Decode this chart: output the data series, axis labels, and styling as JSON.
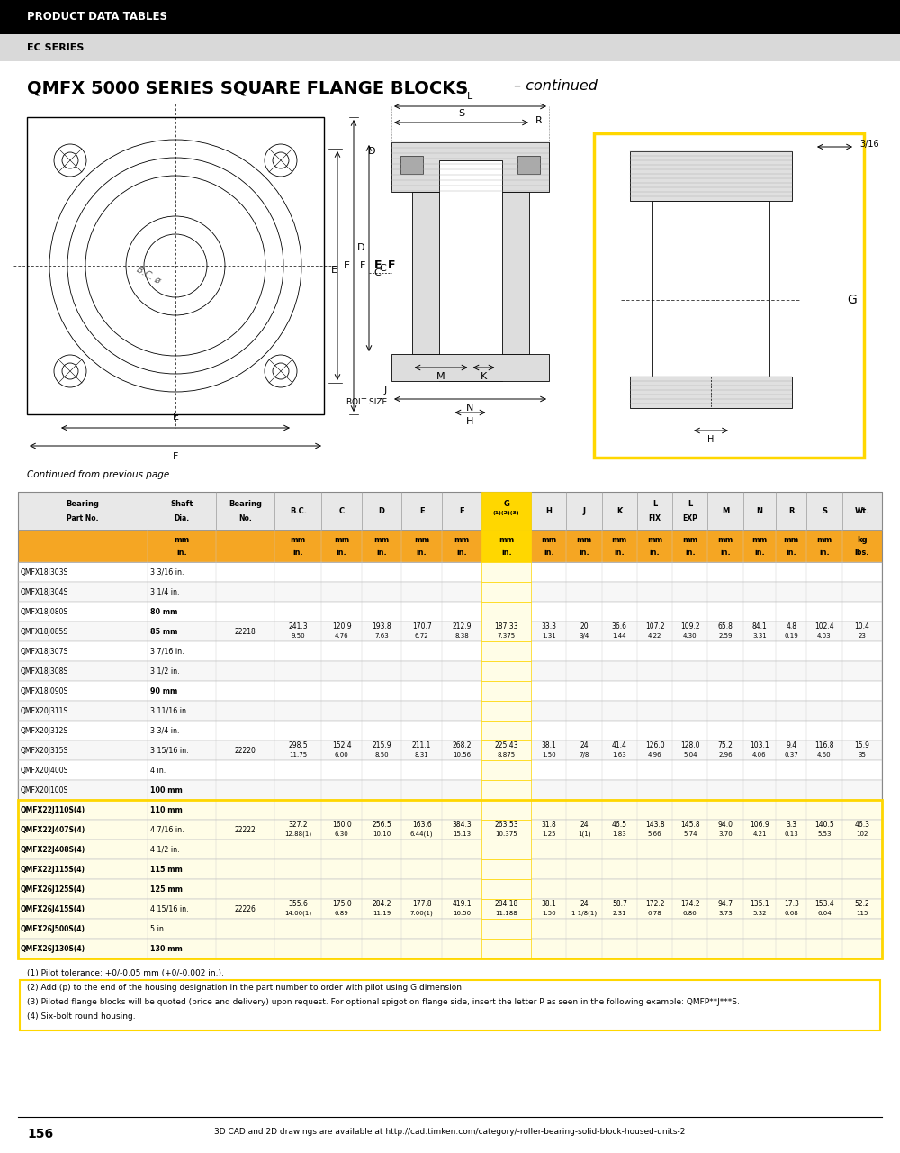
{
  "header_bar_color": "#000000",
  "header_text": "PRODUCT DATA TABLES",
  "subheader_bar_color": "#d9d9d9",
  "subheader_text": "EC SERIES",
  "title_bold": "QMFX 5000 SERIES SQUARE FLANGE BLOCKS",
  "title_italic": " – continued",
  "continued_text": "Continued from previous page.",
  "orange_color": "#F5A623",
  "highlight_yellow": "#FFD700",
  "col_header_texts": [
    "Bearing\nPart No.",
    "Shaft\nDia.",
    "Bearing\nNo.",
    "B.C.",
    "C",
    "D",
    "E",
    "F",
    "G(1)(2)(3)",
    "H",
    "J",
    "K",
    "L\nFIX",
    "L\nEXP",
    "M",
    "N",
    "R",
    "S",
    "Wt."
  ],
  "unit_row1": [
    "",
    "mm",
    "",
    "mm",
    "mm",
    "mm",
    "mm",
    "mm",
    "mm",
    "mm",
    "mm",
    "mm",
    "mm",
    "mm",
    "mm",
    "mm",
    "mm",
    "mm",
    "kg"
  ],
  "unit_row2": [
    "",
    "in.",
    "",
    "in.",
    "in.",
    "in.",
    "in.",
    "in.",
    "in.",
    "in.",
    "in.",
    "in.",
    "in.",
    "in.",
    "in.",
    "in.",
    "in.",
    "in.",
    "lbs."
  ],
  "table_rows": [
    [
      "QMFX18J303S",
      "3 3/16 in.",
      "",
      "",
      "",
      "",
      "",
      "",
      "",
      "",
      "",
      "",
      "",
      "",
      "",
      "",
      "",
      "",
      ""
    ],
    [
      "QMFX18J304S",
      "3 1/4 in.",
      "",
      "",
      "",
      "",
      "",
      "",
      "",
      "",
      "",
      "",
      "",
      "",
      "",
      "",
      "",
      "",
      ""
    ],
    [
      "QMFX18J080S",
      "80 mm",
      "",
      "",
      "",
      "",
      "",
      "",
      "",
      "",
      "",
      "",
      "",
      "",
      "",
      "",
      "",
      "",
      ""
    ],
    [
      "QMFX18J085S",
      "85 mm",
      "22218",
      "241.3\n9.50",
      "120.9\n4.76",
      "193.8\n7.63",
      "170.7\n6.72",
      "212.9\n8.38",
      "187.33\n7.375",
      "33.3\n1.31",
      "20\n3/4",
      "36.6\n1.44",
      "107.2\n4.22",
      "109.2\n4.30",
      "65.8\n2.59",
      "84.1\n3.31",
      "4.8\n0.19",
      "102.4\n4.03",
      "10.4\n23"
    ],
    [
      "QMFX18J307S",
      "3 7/16 in.",
      "",
      "",
      "",
      "",
      "",
      "",
      "",
      "",
      "",
      "",
      "",
      "",
      "",
      "",
      "",
      "",
      ""
    ],
    [
      "QMFX18J308S",
      "3 1/2 in.",
      "",
      "",
      "",
      "",
      "",
      "",
      "",
      "",
      "",
      "",
      "",
      "",
      "",
      "",
      "",
      "",
      ""
    ],
    [
      "QMFX18J090S",
      "90 mm",
      "",
      "",
      "",
      "",
      "",
      "",
      "",
      "",
      "",
      "",
      "",
      "",
      "",
      "",
      "",
      "",
      ""
    ],
    [
      "QMFX20J311S",
      "3 11/16 in.",
      "",
      "",
      "",
      "",
      "",
      "",
      "",
      "",
      "",
      "",
      "",
      "",
      "",
      "",
      "",
      "",
      ""
    ],
    [
      "QMFX20J312S",
      "3 3/4 in.",
      "",
      "",
      "",
      "",
      "",
      "",
      "",
      "",
      "",
      "",
      "",
      "",
      "",
      "",
      "",
      "",
      ""
    ],
    [
      "QMFX20J315S",
      "3 15/16 in.",
      "22220",
      "298.5\n11.75",
      "152.4\n6.00",
      "215.9\n8.50",
      "211.1\n8.31",
      "268.2\n10.56",
      "225.43\n8.875",
      "38.1\n1.50",
      "24\n7/8",
      "41.4\n1.63",
      "126.0\n4.96",
      "128.0\n5.04",
      "75.2\n2.96",
      "103.1\n4.06",
      "9.4\n0.37",
      "116.8\n4.60",
      "15.9\n35"
    ],
    [
      "QMFX20J400S",
      "4 in.",
      "",
      "",
      "",
      "",
      "",
      "",
      "",
      "",
      "",
      "",
      "",
      "",
      "",
      "",
      "",
      "",
      ""
    ],
    [
      "QMFX20J100S",
      "100 mm",
      "",
      "",
      "",
      "",
      "",
      "",
      "",
      "",
      "",
      "",
      "",
      "",
      "",
      "",
      "",
      "",
      ""
    ],
    [
      "QMFX22J110S(4)",
      "110 mm",
      "",
      "",
      "",
      "",
      "",
      "",
      "",
      "",
      "",
      "",
      "",
      "",
      "",
      "",
      "",
      "",
      ""
    ],
    [
      "QMFX22J407S(4)",
      "4 7/16 in.",
      "22222",
      "327.2\n12.88(1)",
      "160.0\n6.30",
      "256.5\n10.10",
      "163.6\n6.44(1)",
      "384.3\n15.13",
      "263.53\n10.375",
      "31.8\n1.25",
      "24\n1(1)",
      "46.5\n1.83",
      "143.8\n5.66",
      "145.8\n5.74",
      "94.0\n3.70",
      "106.9\n4.21",
      "3.3\n0.13",
      "140.5\n5.53",
      "46.3\n102"
    ],
    [
      "QMFX22J408S(4)",
      "4 1/2 in.",
      "",
      "",
      "",
      "",
      "",
      "",
      "",
      "",
      "",
      "",
      "",
      "",
      "",
      "",
      "",
      "",
      ""
    ],
    [
      "QMFX22J115S(4)",
      "115 mm",
      "",
      "",
      "",
      "",
      "",
      "",
      "",
      "",
      "",
      "",
      "",
      "",
      "",
      "",
      "",
      "",
      ""
    ],
    [
      "QMFX26J125S(4)",
      "125 mm",
      "",
      "",
      "",
      "",
      "",
      "",
      "",
      "",
      "",
      "",
      "",
      "",
      "",
      "",
      "",
      "",
      ""
    ],
    [
      "QMFX26J415S(4)",
      "4 15/16 in.",
      "22226",
      "355.6\n14.00(1)",
      "175.0\n6.89",
      "284.2\n11.19",
      "177.8\n7.00(1)",
      "419.1\n16.50",
      "284.18\n11.188",
      "38.1\n1.50",
      "24\n1 1/8(1)",
      "58.7\n2.31",
      "172.2\n6.78",
      "174.2\n6.86",
      "94.7\n3.73",
      "135.1\n5.32",
      "17.3\n0.68",
      "153.4\n6.04",
      "52.2\n115"
    ],
    [
      "QMFX26J500S(4)",
      "5 in.",
      "",
      "",
      "",
      "",
      "",
      "",
      "",
      "",
      "",
      "",
      "",
      "",
      "",
      "",
      "",
      "",
      ""
    ],
    [
      "QMFX26J130S(4)",
      "130 mm",
      "",
      "",
      "",
      "",
      "",
      "",
      "",
      "",
      "",
      "",
      "",
      "",
      "",
      "",
      "",
      "",
      ""
    ]
  ],
  "highlighted_rows": [
    12,
    13,
    14,
    15,
    16,
    17,
    18,
    19
  ],
  "highlighted_col": 8,
  "footnotes": [
    "(1) Pilot tolerance: +0/-0.05 mm (+0/-0.002 in.).",
    "(2) Add (p) to the end of the housing designation in the part number to order with pilot using G dimension.",
    "(3) Piloted flange blocks will be quoted (price and delivery) upon request. For optional spigot on flange side, insert the letter P as seen in the following example: QMFP**J***S.",
    "(4) Six-bolt round housing."
  ],
  "page_number": "156",
  "footer_text": "3D CAD and 2D drawings are available at http://cad.timken.com/category/-roller-bearing-solid-block-housed-units-2"
}
